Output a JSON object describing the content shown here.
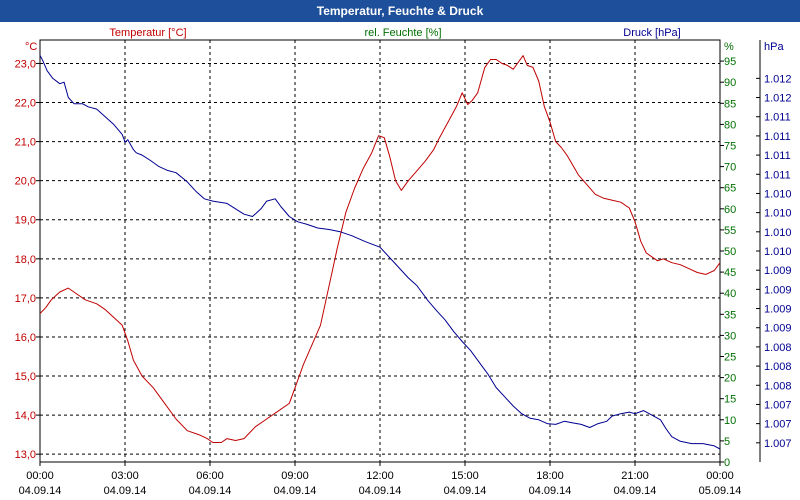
{
  "window": {
    "title": "Temperatur, Feuchte & Druck"
  },
  "chart_data": {
    "type": "line",
    "title": "Temperatur, Feuchte & Druck",
    "colors": {
      "temperature": "#c00000",
      "humidity": "#007000",
      "pressure": "#000090",
      "title_bar": "#1e4f9a",
      "grid": "#000000"
    },
    "x_axis": {
      "unit": "hours",
      "range": [
        0,
        24
      ],
      "ticks": [
        {
          "x": 0,
          "time": "00:00",
          "date": "04.09.14"
        },
        {
          "x": 3,
          "time": "03:00",
          "date": "04.09.14"
        },
        {
          "x": 6,
          "time": "06:00",
          "date": "04.09.14"
        },
        {
          "x": 9,
          "time": "09:00",
          "date": "04.09.14"
        },
        {
          "x": 12,
          "time": "12:00",
          "date": "04.09.14"
        },
        {
          "x": 15,
          "time": "15:00",
          "date": "04.09.14"
        },
        {
          "x": 18,
          "time": "18:00",
          "date": "04.09.14"
        },
        {
          "x": 21,
          "time": "21:00",
          "date": "04.09.14"
        },
        {
          "x": 24,
          "time": "00:00",
          "date": "05.09.14"
        }
      ]
    },
    "y_left": {
      "label": "Temperatur [°C]",
      "unit": "°C",
      "range": [
        12.8,
        23.6
      ],
      "ticks": [
        {
          "v": 13,
          "label": "13,0"
        },
        {
          "v": 14,
          "label": "14,0"
        },
        {
          "v": 15,
          "label": "15,0"
        },
        {
          "v": 16,
          "label": "16,0"
        },
        {
          "v": 17,
          "label": "17,0"
        },
        {
          "v": 18,
          "label": "18,0"
        },
        {
          "v": 19,
          "label": "19,0"
        },
        {
          "v": 20,
          "label": "20,0"
        },
        {
          "v": 21,
          "label": "21,0"
        },
        {
          "v": 22,
          "label": "22,0"
        },
        {
          "v": 23,
          "label": "23,0"
        }
      ]
    },
    "y_mid": {
      "label": "rel. Feuchte [%]",
      "unit": "%",
      "range": [
        0,
        100
      ],
      "ticks": [
        {
          "v": 0,
          "label": "0"
        },
        {
          "v": 5,
          "label": "5"
        },
        {
          "v": 10,
          "label": "10"
        },
        {
          "v": 15,
          "label": "15"
        },
        {
          "v": 20,
          "label": "20"
        },
        {
          "v": 25,
          "label": "25"
        },
        {
          "v": 30,
          "label": "30"
        },
        {
          "v": 35,
          "label": "35"
        },
        {
          "v": 40,
          "label": "40"
        },
        {
          "v": 45,
          "label": "45"
        },
        {
          "v": 50,
          "label": "50"
        },
        {
          "v": 55,
          "label": "55"
        },
        {
          "v": 60,
          "label": "60"
        },
        {
          "v": 65,
          "label": "65"
        },
        {
          "v": 70,
          "label": "70"
        },
        {
          "v": 75,
          "label": "75"
        },
        {
          "v": 80,
          "label": "80"
        },
        {
          "v": 85,
          "label": "85"
        },
        {
          "v": 90,
          "label": "90"
        },
        {
          "v": 95,
          "label": "95"
        }
      ]
    },
    "y_right": {
      "label": "Druck [hPa]",
      "unit": "hPa",
      "range": [
        1006.75,
        1012.25
      ],
      "ticks": [
        {
          "v": 1007.0,
          "label": "1.007"
        },
        {
          "v": 1007.25,
          "label": "1.007"
        },
        {
          "v": 1007.5,
          "label": "1.007"
        },
        {
          "v": 1007.75,
          "label": "1.008"
        },
        {
          "v": 1008.0,
          "label": "1.008"
        },
        {
          "v": 1008.25,
          "label": "1.008"
        },
        {
          "v": 1008.5,
          "label": "1.009"
        },
        {
          "v": 1008.75,
          "label": "1.009"
        },
        {
          "v": 1009.0,
          "label": "1.009"
        },
        {
          "v": 1009.25,
          "label": "1.009"
        },
        {
          "v": 1009.5,
          "label": "1.010"
        },
        {
          "v": 1009.75,
          "label": "1.010"
        },
        {
          "v": 1010.0,
          "label": "1.010"
        },
        {
          "v": 1010.25,
          "label": "1.010"
        },
        {
          "v": 1010.5,
          "label": "1.011"
        },
        {
          "v": 1010.75,
          "label": "1.011"
        },
        {
          "v": 1011.0,
          "label": "1.011"
        },
        {
          "v": 1011.25,
          "label": "1.011"
        },
        {
          "v": 1011.5,
          "label": "1.012"
        },
        {
          "v": 1011.75,
          "label": "1.012"
        }
      ]
    },
    "series": [
      {
        "name": "Temperatur [°C]",
        "axis": "left",
        "color": "#c00000",
        "points": [
          [
            0,
            16.6
          ],
          [
            0.2,
            16.75
          ],
          [
            0.4,
            16.95
          ],
          [
            0.7,
            17.15
          ],
          [
            1.0,
            17.25
          ],
          [
            1.3,
            17.1
          ],
          [
            1.6,
            16.95
          ],
          [
            2.0,
            16.85
          ],
          [
            2.3,
            16.7
          ],
          [
            2.6,
            16.5
          ],
          [
            2.9,
            16.3
          ],
          [
            3.1,
            15.9
          ],
          [
            3.3,
            15.4
          ],
          [
            3.6,
            15.0
          ],
          [
            4.0,
            14.7
          ],
          [
            4.4,
            14.3
          ],
          [
            4.8,
            13.9
          ],
          [
            5.2,
            13.6
          ],
          [
            5.6,
            13.5
          ],
          [
            5.9,
            13.4
          ],
          [
            6.1,
            13.3
          ],
          [
            6.4,
            13.3
          ],
          [
            6.6,
            13.4
          ],
          [
            6.9,
            13.35
          ],
          [
            7.2,
            13.4
          ],
          [
            7.6,
            13.7
          ],
          [
            8.0,
            13.9
          ],
          [
            8.4,
            14.1
          ],
          [
            8.8,
            14.3
          ],
          [
            9.0,
            14.7
          ],
          [
            9.3,
            15.3
          ],
          [
            9.6,
            15.8
          ],
          [
            9.9,
            16.3
          ],
          [
            10.2,
            17.3
          ],
          [
            10.5,
            18.3
          ],
          [
            10.8,
            19.2
          ],
          [
            11.1,
            19.8
          ],
          [
            11.4,
            20.3
          ],
          [
            11.7,
            20.7
          ],
          [
            11.95,
            21.15
          ],
          [
            12.15,
            21.1
          ],
          [
            12.35,
            20.6
          ],
          [
            12.55,
            20.0
          ],
          [
            12.75,
            19.75
          ],
          [
            13.0,
            20.0
          ],
          [
            13.3,
            20.25
          ],
          [
            13.6,
            20.5
          ],
          [
            13.9,
            20.8
          ],
          [
            14.1,
            21.1
          ],
          [
            14.4,
            21.5
          ],
          [
            14.7,
            21.9
          ],
          [
            14.9,
            22.25
          ],
          [
            15.1,
            21.95
          ],
          [
            15.25,
            22.05
          ],
          [
            15.45,
            22.25
          ],
          [
            15.7,
            22.9
          ],
          [
            15.9,
            23.1
          ],
          [
            16.1,
            23.1
          ],
          [
            16.3,
            23.0
          ],
          [
            16.5,
            22.95
          ],
          [
            16.7,
            22.85
          ],
          [
            16.9,
            23.05
          ],
          [
            17.05,
            23.2
          ],
          [
            17.2,
            22.95
          ],
          [
            17.4,
            22.9
          ],
          [
            17.6,
            22.55
          ],
          [
            17.8,
            21.9
          ],
          [
            18.0,
            21.5
          ],
          [
            18.2,
            21.0
          ],
          [
            18.4,
            20.85
          ],
          [
            18.6,
            20.65
          ],
          [
            18.8,
            20.4
          ],
          [
            19.0,
            20.15
          ],
          [
            19.3,
            19.9
          ],
          [
            19.6,
            19.65
          ],
          [
            19.9,
            19.55
          ],
          [
            20.2,
            19.5
          ],
          [
            20.5,
            19.45
          ],
          [
            20.8,
            19.3
          ],
          [
            21.0,
            18.95
          ],
          [
            21.2,
            18.45
          ],
          [
            21.4,
            18.15
          ],
          [
            21.6,
            18.05
          ],
          [
            21.8,
            17.95
          ],
          [
            22.0,
            18.0
          ],
          [
            22.3,
            17.9
          ],
          [
            22.6,
            17.85
          ],
          [
            22.9,
            17.75
          ],
          [
            23.2,
            17.65
          ],
          [
            23.5,
            17.6
          ],
          [
            23.8,
            17.7
          ],
          [
            24.0,
            17.9
          ]
        ]
      },
      {
        "name": "Druck [hPa]",
        "axis": "right",
        "color": "#000090",
        "points": [
          [
            0,
            1012.05
          ],
          [
            0.1,
            1011.98
          ],
          [
            0.25,
            1011.85
          ],
          [
            0.45,
            1011.75
          ],
          [
            0.7,
            1011.68
          ],
          [
            0.85,
            1011.7
          ],
          [
            1.0,
            1011.5
          ],
          [
            1.2,
            1011.42
          ],
          [
            1.5,
            1011.42
          ],
          [
            1.7,
            1011.38
          ],
          [
            2.0,
            1011.35
          ],
          [
            2.3,
            1011.25
          ],
          [
            2.6,
            1011.15
          ],
          [
            2.9,
            1011.02
          ],
          [
            3.0,
            1010.92
          ],
          [
            3.1,
            1010.95
          ],
          [
            3.3,
            1010.82
          ],
          [
            3.4,
            1010.78
          ],
          [
            3.6,
            1010.75
          ],
          [
            3.9,
            1010.68
          ],
          [
            4.2,
            1010.6
          ],
          [
            4.5,
            1010.55
          ],
          [
            4.8,
            1010.52
          ],
          [
            5.2,
            1010.4
          ],
          [
            5.5,
            1010.28
          ],
          [
            5.8,
            1010.18
          ],
          [
            6.1,
            1010.15
          ],
          [
            6.6,
            1010.12
          ],
          [
            6.9,
            1010.05
          ],
          [
            7.2,
            1009.98
          ],
          [
            7.5,
            1009.95
          ],
          [
            7.8,
            1010.05
          ],
          [
            8.0,
            1010.15
          ],
          [
            8.3,
            1010.18
          ],
          [
            8.5,
            1010.08
          ],
          [
            8.8,
            1009.95
          ],
          [
            9.1,
            1009.88
          ],
          [
            9.4,
            1009.85
          ],
          [
            9.8,
            1009.8
          ],
          [
            10.2,
            1009.78
          ],
          [
            10.6,
            1009.75
          ],
          [
            11.0,
            1009.7
          ],
          [
            11.5,
            1009.62
          ],
          [
            12.0,
            1009.55
          ],
          [
            12.5,
            1009.35
          ],
          [
            13.0,
            1009.15
          ],
          [
            13.3,
            1009.05
          ],
          [
            13.7,
            1008.85
          ],
          [
            14.0,
            1008.72
          ],
          [
            14.3,
            1008.6
          ],
          [
            14.6,
            1008.45
          ],
          [
            14.9,
            1008.32
          ],
          [
            15.2,
            1008.2
          ],
          [
            15.5,
            1008.05
          ],
          [
            15.8,
            1007.9
          ],
          [
            16.1,
            1007.72
          ],
          [
            16.4,
            1007.6
          ],
          [
            16.7,
            1007.48
          ],
          [
            17.0,
            1007.38
          ],
          [
            17.3,
            1007.32
          ],
          [
            17.6,
            1007.3
          ],
          [
            17.9,
            1007.25
          ],
          [
            18.2,
            1007.24
          ],
          [
            18.5,
            1007.28
          ],
          [
            18.8,
            1007.26
          ],
          [
            19.1,
            1007.24
          ],
          [
            19.4,
            1007.2
          ],
          [
            19.7,
            1007.25
          ],
          [
            20.0,
            1007.28
          ],
          [
            20.2,
            1007.35
          ],
          [
            20.5,
            1007.38
          ],
          [
            20.8,
            1007.4
          ],
          [
            21.0,
            1007.38
          ],
          [
            21.3,
            1007.42
          ],
          [
            21.6,
            1007.36
          ],
          [
            21.9,
            1007.3
          ],
          [
            22.1,
            1007.18
          ],
          [
            22.3,
            1007.08
          ],
          [
            22.6,
            1007.02
          ],
          [
            23.0,
            1006.99
          ],
          [
            23.4,
            1006.99
          ],
          [
            23.8,
            1006.96
          ],
          [
            24.0,
            1006.92
          ]
        ]
      }
    ]
  }
}
